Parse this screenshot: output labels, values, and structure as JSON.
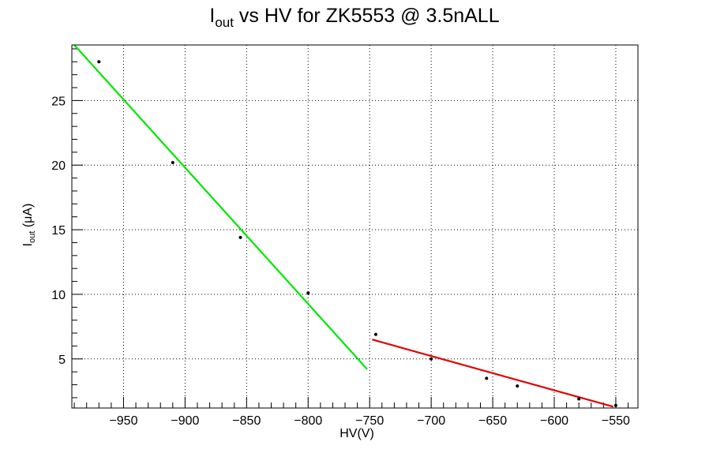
{
  "chart_data": {
    "type": "scatter",
    "title": {
      "main": "I",
      "sub": "out",
      "rest": " vs HV for ZK5553 @ 3.5nALL"
    },
    "xlabel": "HV(V)",
    "ylabel": {
      "main": "I",
      "sub": "out",
      "rest": " (μA)"
    },
    "xlim": [
      -992,
      -532
    ],
    "ylim": [
      1.2,
      29.3
    ],
    "xticks": [
      -950,
      -900,
      -850,
      -800,
      -750,
      -700,
      -650,
      -600,
      -550
    ],
    "xtick_labels": [
      "−950",
      "−900",
      "−850",
      "−800",
      "−750",
      "−700",
      "−650",
      "−600",
      "−550"
    ],
    "yticks": [
      5,
      10,
      15,
      20,
      25
    ],
    "ytick_labels": [
      "5",
      "10",
      "15",
      "20",
      "25"
    ],
    "grid": true,
    "series": [
      {
        "points": [
          {
            "x": -970,
            "y": 28.0
          },
          {
            "x": -910,
            "y": 20.2
          },
          {
            "x": -855,
            "y": 14.4
          },
          {
            "x": -800,
            "y": 10.1
          },
          {
            "x": -745,
            "y": 6.9
          },
          {
            "x": -700,
            "y": 5.0
          },
          {
            "x": -655,
            "y": 3.5
          },
          {
            "x": -630,
            "y": 2.9
          },
          {
            "x": -580,
            "y": 1.9
          },
          {
            "x": -550,
            "y": 1.4
          }
        ],
        "color": "#000000"
      }
    ],
    "fits": [
      {
        "x": [
          -990,
          -752
        ],
        "y": [
          29.3,
          4.2
        ],
        "color": "#00e600"
      },
      {
        "x": [
          -748,
          -552
        ],
        "y": [
          6.5,
          1.3
        ],
        "color": "#e00000"
      }
    ]
  }
}
